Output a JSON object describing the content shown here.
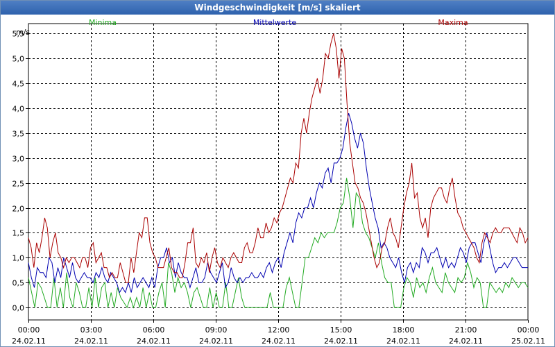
{
  "window": {
    "title": "Windgeschwindigkeit [m/s] skaliert"
  },
  "chart_data": {
    "type": "line",
    "title": "Windgeschwindigkeit [m/s] skaliert",
    "ylabel": "m/s",
    "xlabel": "",
    "ylim": [
      -0.25,
      5.7
    ],
    "xlim": [
      0,
      24
    ],
    "grid": true,
    "legend": "top",
    "y_ticks": [
      "0,0",
      "0,5",
      "1,0",
      "1,5",
      "2,0",
      "2,5",
      "3,0",
      "3,5",
      "4,0",
      "4,5",
      "5,0",
      "5,5"
    ],
    "y_tick_values": [
      0,
      0.5,
      1,
      1.5,
      2,
      2.5,
      3,
      3.5,
      4,
      4.5,
      5,
      5.5
    ],
    "x_ticks": [
      {
        "time": "00:00",
        "date": "24.02.11"
      },
      {
        "time": "03:00",
        "date": "24.02.11"
      },
      {
        "time": "06:00",
        "date": "24.02.11"
      },
      {
        "time": "09:00",
        "date": "24.02.11"
      },
      {
        "time": "12:00",
        "date": "24.02.11"
      },
      {
        "time": "15:00",
        "date": "24.02.11"
      },
      {
        "time": "18:00",
        "date": "24.02.11"
      },
      {
        "time": "21:00",
        "date": "24.02.11"
      },
      {
        "time": "00:00",
        "date": "25.02.11"
      }
    ],
    "series": [
      {
        "name": "Minima",
        "color": "#22aa22",
        "values": [
          0.6,
          0.3,
          0.0,
          0.5,
          0.4,
          0.2,
          0.0,
          0.0,
          0.6,
          0.0,
          0.4,
          0.0,
          0.7,
          0.2,
          0.0,
          0.5,
          0.3,
          0.0,
          0.0,
          0.4,
          0.0,
          0.6,
          0.0,
          0.4,
          0.5,
          0.0,
          0.3,
          0.0,
          0.4,
          0.2,
          0.1,
          0.0,
          0.2,
          0.0,
          0.2,
          0.0,
          0.4,
          0.0,
          0.3,
          0.0,
          0.0,
          0.3,
          0.5,
          0.0,
          0.9,
          0.7,
          0.3,
          0.6,
          0.4,
          0.5,
          0.3,
          0.0,
          0.3,
          0.4,
          0.2,
          0.0,
          0.0,
          0.4,
          0.0,
          0.3,
          0.0,
          0.0,
          0.5,
          0.0,
          0.0,
          0.3,
          0.6,
          0.2,
          0.0,
          0.0,
          0.0,
          0.0,
          0.0,
          0.0,
          0.0,
          0.0,
          0.3,
          0.0,
          0.0,
          0.0,
          0.0,
          0.4,
          0.6,
          0.3,
          0.0,
          0.0,
          0.5,
          1.0,
          1.0,
          1.2,
          1.4,
          1.3,
          1.5,
          1.4,
          1.5,
          1.5,
          1.5,
          1.7,
          2.0,
          2.1,
          2.6,
          2.2,
          1.6,
          2.3,
          2.2,
          1.7,
          1.5,
          1.4,
          1.2,
          1.0,
          1.3,
          0.9,
          0.6,
          0.5,
          0.5,
          0.0,
          0.0,
          0.0,
          0.4,
          0.6,
          0.5,
          0.2,
          0.6,
          0.4,
          0.5,
          0.3,
          0.6,
          0.8,
          0.5,
          0.4,
          0.3,
          0.7,
          0.5,
          0.4,
          0.3,
          0.6,
          0.5,
          0.6,
          0.9,
          0.7,
          0.4,
          0.6,
          0.5,
          0.0,
          0.0,
          0.5,
          0.4,
          0.3,
          0.4,
          0.3,
          0.5,
          0.4,
          0.6,
          0.5,
          0.4,
          0.5,
          0.5,
          0.4
        ]
      },
      {
        "name": "Mittelwerte",
        "color": "#0000b0",
        "values": [
          0.9,
          0.6,
          0.4,
          0.8,
          0.7,
          0.7,
          0.6,
          1.0,
          0.9,
          0.5,
          0.8,
          0.6,
          1.0,
          0.8,
          0.6,
          0.9,
          0.6,
          0.5,
          0.6,
          0.7,
          0.6,
          0.6,
          0.5,
          0.7,
          0.6,
          0.8,
          0.6,
          0.5,
          0.7,
          0.6,
          0.5,
          0.3,
          0.4,
          0.3,
          0.5,
          0.3,
          0.6,
          0.4,
          0.5,
          0.6,
          0.5,
          0.4,
          0.6,
          0.4,
          0.8,
          1.0,
          1.0,
          1.2,
          0.9,
          1.0,
          0.6,
          0.9,
          0.7,
          0.6,
          0.6,
          0.4,
          0.6,
          0.8,
          0.5,
          0.5,
          0.6,
          0.9,
          0.7,
          0.6,
          0.5,
          0.7,
          0.9,
          0.4,
          0.5,
          0.8,
          0.6,
          0.5,
          0.6,
          0.5,
          0.6,
          0.6,
          0.7,
          0.6,
          0.6,
          0.7,
          0.6,
          0.8,
          0.9,
          0.7,
          0.9,
          1.0,
          0.8,
          1.1,
          1.3,
          1.5,
          1.3,
          1.7,
          1.9,
          1.8,
          2.0,
          2.0,
          2.2,
          2.0,
          2.3,
          2.5,
          2.4,
          2.7,
          2.8,
          2.5,
          2.9,
          2.9,
          3.0,
          3.2,
          3.6,
          3.9,
          3.7,
          3.4,
          3.2,
          3.5,
          3.3,
          2.8,
          2.4,
          2.1,
          1.8,
          1.6,
          1.2,
          1.3,
          1.2,
          1.0,
          0.9,
          0.8,
          1.0,
          0.7,
          0.5,
          0.8,
          0.9,
          0.7,
          0.9,
          0.8,
          1.2,
          1.1,
          0.9,
          1.1,
          1.1,
          1.2,
          1.0,
          0.8,
          1.0,
          0.8,
          0.9,
          0.8,
          1.0,
          1.2,
          1.1,
          0.9,
          1.2,
          1.3,
          1.3,
          1.1,
          0.9,
          1.3,
          1.5,
          1.2,
          0.9,
          0.7,
          0.8,
          0.8,
          0.9,
          0.8,
          0.9,
          1.0,
          1.0,
          0.9,
          0.8,
          0.8,
          0.8
        ]
      },
      {
        "name": "Maxima",
        "color": "#aa0000",
        "values": [
          1.4,
          1.2,
          0.8,
          1.3,
          1.1,
          1.4,
          1.8,
          1.6,
          1.0,
          1.3,
          1.5,
          1.1,
          1.0,
          0.8,
          1.0,
          0.9,
          1.0,
          1.0,
          0.9,
          0.8,
          1.0,
          1.0,
          0.8,
          1.2,
          1.3,
          0.9,
          1.0,
          1.1,
          0.8,
          0.8,
          0.6,
          0.7,
          0.6,
          0.6,
          0.9,
          0.7,
          0.5,
          0.5,
          1.0,
          0.7,
          1.1,
          1.5,
          1.4,
          1.8,
          1.8,
          1.3,
          1.1,
          1.0,
          0.8,
          0.8,
          0.8,
          1.0,
          1.2,
          0.8,
          0.7,
          0.7,
          0.6,
          0.6,
          0.9,
          1.3,
          1.3,
          1.6,
          0.9,
          0.8,
          1.0,
          0.9,
          1.1,
          0.7,
          1.0,
          1.2,
          0.9,
          0.8,
          1.0,
          0.9,
          0.8,
          1.0,
          1.1,
          1.0,
          0.9,
          0.9,
          1.2,
          1.3,
          1.1,
          1.1,
          1.3,
          1.6,
          1.4,
          1.4,
          1.7,
          1.5,
          1.6,
          1.8,
          1.7,
          1.9,
          2.0,
          2.2,
          2.4,
          2.6,
          2.5,
          2.9,
          2.8,
          3.5,
          3.8,
          3.5,
          3.9,
          4.2,
          4.4,
          4.6,
          4.3,
          4.6,
          5.1,
          5.0,
          5.3,
          5.5,
          5.2,
          4.6,
          5.2,
          5.0,
          4.1,
          3.3,
          2.9,
          2.5,
          2.4,
          2.2,
          2.1,
          1.9,
          1.6,
          1.3,
          1.0,
          0.8,
          0.9,
          1.2,
          1.3,
          1.6,
          1.8,
          1.5,
          1.4,
          1.2,
          1.6,
          2.0,
          2.3,
          2.5,
          2.9,
          2.2,
          2.3,
          1.8,
          1.6,
          1.8,
          1.4,
          2.0,
          2.2,
          2.3,
          2.4,
          2.4,
          2.2,
          2.1,
          2.4,
          2.6,
          2.2,
          1.9,
          1.8,
          1.6,
          1.5,
          1.4,
          1.3,
          1.2,
          1.0,
          0.9,
          1.3,
          1.5,
          1.4,
          1.3,
          1.5,
          1.6,
          1.5,
          1.5,
          1.6,
          1.6,
          1.6,
          1.5,
          1.4,
          1.3,
          1.6,
          1.5,
          1.3,
          1.4
        ]
      }
    ]
  }
}
